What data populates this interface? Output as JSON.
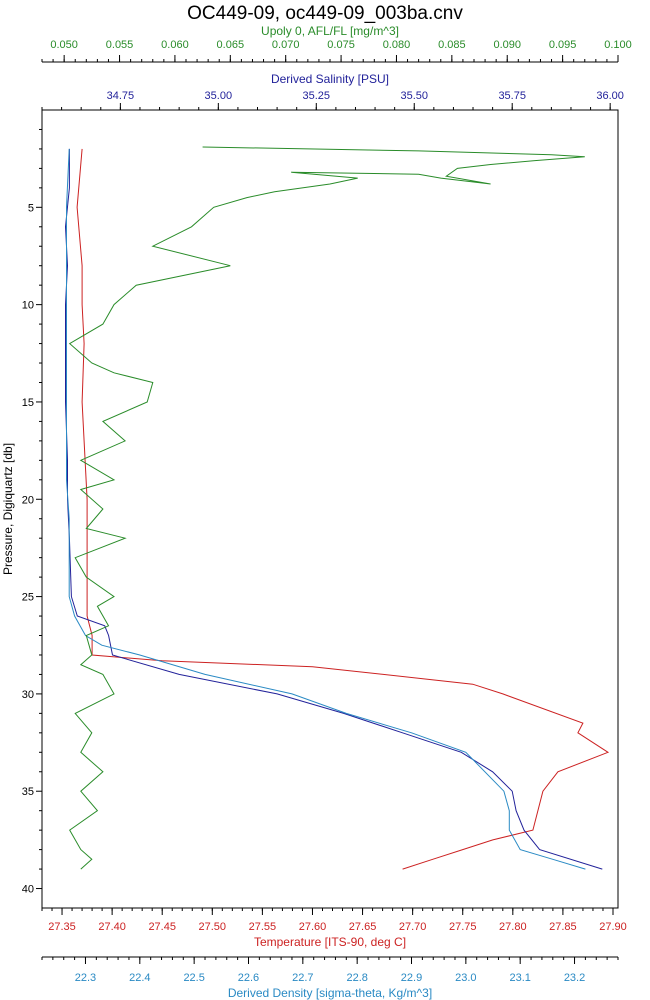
{
  "chart_data": {
    "type": "line",
    "title": "OC449-09, oc449-09_003ba.cnv",
    "y_axis": {
      "label": "Pressure, Digiquartz [db]",
      "range": [
        0,
        41
      ],
      "inverted": true,
      "ticks": [
        5,
        10,
        15,
        20,
        25,
        30,
        35,
        40
      ]
    },
    "axes": [
      {
        "id": "fluor",
        "position": "top-outer",
        "color": "#2a8c2a",
        "label": "Upoly 0, AFL/FL [mg/m^3]",
        "range": [
          0.048,
          0.1
        ],
        "ticks": [
          "0.050",
          "0.055",
          "0.060",
          "0.065",
          "0.070",
          "0.075",
          "0.080",
          "0.085",
          "0.090",
          "0.095",
          "0.100"
        ]
      },
      {
        "id": "salinity",
        "position": "top-inner",
        "color": "#22229a",
        "label": "Derived Salinity [PSU]",
        "range": [
          34.55,
          36.02
        ],
        "ticks": [
          "34.75",
          "35.00",
          "35.25",
          "35.50",
          "35.75",
          "36.00"
        ]
      },
      {
        "id": "temperature",
        "position": "bottom-inner",
        "color": "#cc2222",
        "label": "Temperature [ITS-90, deg C]",
        "range": [
          27.33,
          27.905
        ],
        "ticks": [
          "27.35",
          "27.40",
          "27.45",
          "27.50",
          "27.55",
          "27.60",
          "27.65",
          "27.70",
          "27.75",
          "27.80",
          "27.85",
          "27.90"
        ]
      },
      {
        "id": "density",
        "position": "bottom-outer",
        "color": "#2a8ac4",
        "label": "Derived Density [sigma-theta, Kg/m^3]",
        "range": [
          22.22,
          23.28
        ],
        "ticks": [
          "22.3",
          "22.4",
          "22.5",
          "22.6",
          "22.7",
          "22.8",
          "22.9",
          "23.0",
          "23.1",
          "23.2"
        ]
      }
    ],
    "series": [
      {
        "axis": "temperature",
        "color": "#cc2222",
        "x": [
          27.37,
          27.365,
          27.37,
          27.37,
          27.372,
          27.37,
          27.375,
          27.375,
          27.375,
          27.375,
          27.38,
          27.38,
          27.38,
          27.45,
          27.6,
          27.76,
          27.79,
          27.87,
          27.865,
          27.895,
          27.845,
          27.83,
          27.82,
          27.78,
          27.75,
          27.72,
          27.69
        ],
        "y": [
          2,
          5,
          8,
          10,
          12,
          15,
          20,
          22,
          24,
          26,
          27,
          27.5,
          28,
          28.3,
          28.6,
          29.5,
          30,
          31.5,
          32,
          33,
          34,
          35,
          37,
          37.5,
          38,
          38.5,
          39
        ]
      },
      {
        "axis": "salinity",
        "color": "#22229a",
        "x": [
          34.62,
          34.62,
          34.61,
          34.615,
          34.61,
          34.61,
          34.61,
          34.615,
          34.615,
          34.62,
          34.625,
          34.64,
          34.71,
          34.72,
          34.73,
          34.9,
          35.15,
          35.32,
          35.47,
          35.62,
          35.7,
          35.75,
          35.76,
          35.78,
          35.82,
          35.98
        ],
        "y": [
          2,
          4,
          6,
          8,
          10,
          13,
          15,
          18,
          20,
          22,
          25,
          26,
          26.5,
          27,
          28,
          29,
          30,
          31,
          32,
          33,
          34,
          35,
          36,
          37,
          38,
          39
        ]
      },
      {
        "axis": "density",
        "color": "#2a8ac4",
        "x": [
          22.27,
          22.265,
          22.265,
          22.265,
          22.265,
          22.265,
          22.265,
          22.27,
          22.27,
          22.27,
          22.28,
          22.3,
          22.33,
          22.4,
          22.52,
          22.68,
          22.78,
          22.9,
          23.0,
          23.07,
          23.08,
          23.08,
          23.1,
          23.16,
          23.22
        ],
        "y": [
          2,
          5,
          8,
          10,
          13,
          16,
          19,
          21,
          23,
          25,
          26,
          27,
          27.5,
          28,
          29,
          30,
          31,
          32,
          33,
          35,
          36,
          37,
          38,
          38.5,
          39
        ]
      },
      {
        "axis": "fluor",
        "color": "#2a8c2a",
        "x": [
          0.0515,
          0.0525,
          0.0515,
          0.0505,
          0.053,
          0.0515,
          0.0535,
          0.0515,
          0.0525,
          0.051,
          0.0545,
          0.0535,
          0.0515,
          0.0525,
          0.052,
          0.054,
          0.053,
          0.0545,
          0.052,
          0.051,
          0.0555,
          0.052,
          0.0535,
          0.0515,
          0.0545,
          0.0515,
          0.0555,
          0.0535,
          0.0575,
          0.058,
          0.0545,
          0.0525,
          0.0505,
          0.0535,
          0.0545,
          0.0565,
          0.065,
          0.058,
          0.0615,
          0.0635,
          0.0665,
          0.069,
          0.074,
          0.0765,
          0.0705,
          0.082,
          0.084,
          0.0885,
          0.0845,
          0.0855,
          0.0885,
          0.0925,
          0.097,
          0.094,
          0.082,
          0.0625
        ],
        "y": [
          39,
          38.5,
          38,
          37,
          36,
          35,
          34,
          33,
          32,
          31,
          30,
          29,
          28.5,
          28,
          27,
          26.5,
          25.5,
          25,
          24,
          23,
          22,
          21.5,
          20.5,
          19.5,
          19,
          18,
          17,
          16,
          15,
          14,
          13.5,
          13,
          12,
          11,
          10,
          9,
          8,
          7,
          6,
          5,
          4.5,
          4.2,
          3.8,
          3.5,
          3.2,
          3.3,
          3.5,
          3.8,
          3.4,
          3.0,
          2.8,
          2.6,
          2.4,
          2.3,
          2.1,
          1.9
        ]
      }
    ]
  }
}
